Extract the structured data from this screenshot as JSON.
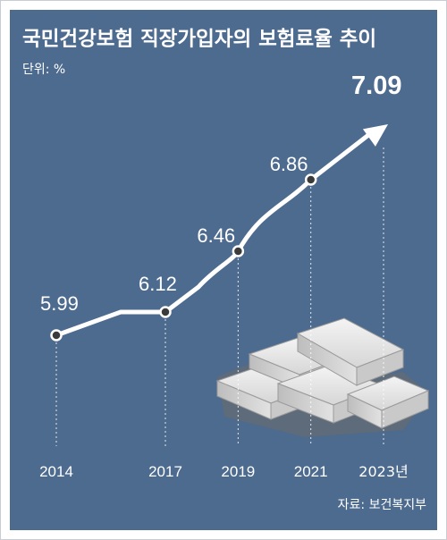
{
  "chart_data": {
    "type": "line",
    "title": "국민건강보험 직장가입자의 보험료율 추이",
    "unit_label": "단위: %",
    "x": [
      "2014",
      "2017",
      "2019",
      "2021",
      "2023"
    ],
    "x_tick_labels": [
      "2014",
      "2017",
      "2019",
      "2021",
      "2023년"
    ],
    "values": [
      5.99,
      6.12,
      6.46,
      6.86,
      7.09
    ],
    "value_labels": [
      "5.99",
      "6.12",
      "6.46",
      "6.86",
      "7.09"
    ],
    "source": "자료: 보건복지부",
    "grid": false,
    "legend": "none",
    "colors": {
      "background": "#4d6a8f",
      "line": "#ffffff",
      "text": "#ffffff",
      "marker_fill": "#3b3b3b"
    }
  }
}
